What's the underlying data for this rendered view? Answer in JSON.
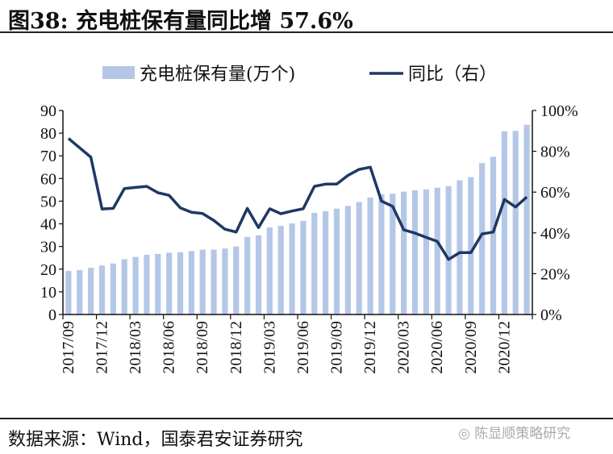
{
  "title": "图38: 充电桩保有量同比增 57.6%",
  "source": "数据来源：Wind，国泰君安证券研究",
  "watermark": "陈显顺策略研究",
  "chart_data": {
    "type": "bar+line",
    "title": "图38: 充电桩保有量同比增 57.6%",
    "legend": [
      "充电桩保有量(万个)",
      "同比（右）"
    ],
    "legend_position": "top-center",
    "x_tick_labels": [
      "2017/09",
      "2017/12",
      "2018/03",
      "2018/06",
      "2018/09",
      "2018/12",
      "2019/03",
      "2019/06",
      "2019/09",
      "2019/12",
      "2020/03",
      "2020/06",
      "2020/09",
      "2020/12"
    ],
    "y_left": {
      "ticks": [
        "0",
        "10",
        "20",
        "30",
        "40",
        "50",
        "60",
        "70",
        "80",
        "90"
      ],
      "lim": [
        0,
        90
      ]
    },
    "y_right": {
      "ticks": [
        "0%",
        "20%",
        "40%",
        "60%",
        "80%",
        "100%"
      ],
      "lim": [
        0,
        100
      ]
    },
    "colors": {
      "bar": "#b4c7e7",
      "line": "#1f3864"
    },
    "series": [
      {
        "name": "充电桩保有量(万个)",
        "type": "bar",
        "axis": "left",
        "values": [
          19.2,
          19.6,
          20.6,
          21.6,
          22.5,
          24.4,
          25.4,
          26.3,
          26.7,
          27.3,
          27.5,
          28.0,
          28.6,
          28.6,
          29.1,
          30.0,
          34.2,
          34.9,
          38.4,
          39.1,
          40.2,
          41.3,
          44.8,
          45.5,
          46.7,
          47.9,
          49.6,
          51.6,
          53.0,
          53.3,
          54.2,
          54.8,
          55.2,
          55.9,
          56.6,
          59.2,
          60.6,
          66.8,
          69.6,
          80.8,
          81.0,
          83.7
        ]
      },
      {
        "name": "同比（右）",
        "type": "line",
        "axis": "right",
        "values": [
          86.3,
          81.7,
          77.1,
          51.7,
          52.0,
          61.7,
          62.3,
          62.8,
          59.7,
          58.4,
          52.3,
          50.1,
          49.5,
          46.1,
          41.8,
          40.4,
          52.0,
          42.6,
          51.8,
          49.4,
          50.7,
          51.8,
          62.8,
          63.9,
          63.9,
          68.2,
          71.1,
          72.2,
          55.6,
          53.0,
          41.5,
          39.9,
          37.8,
          35.8,
          27.0,
          30.3,
          30.3,
          39.5,
          40.4,
          56.4,
          52.7,
          57.6
        ]
      }
    ]
  }
}
